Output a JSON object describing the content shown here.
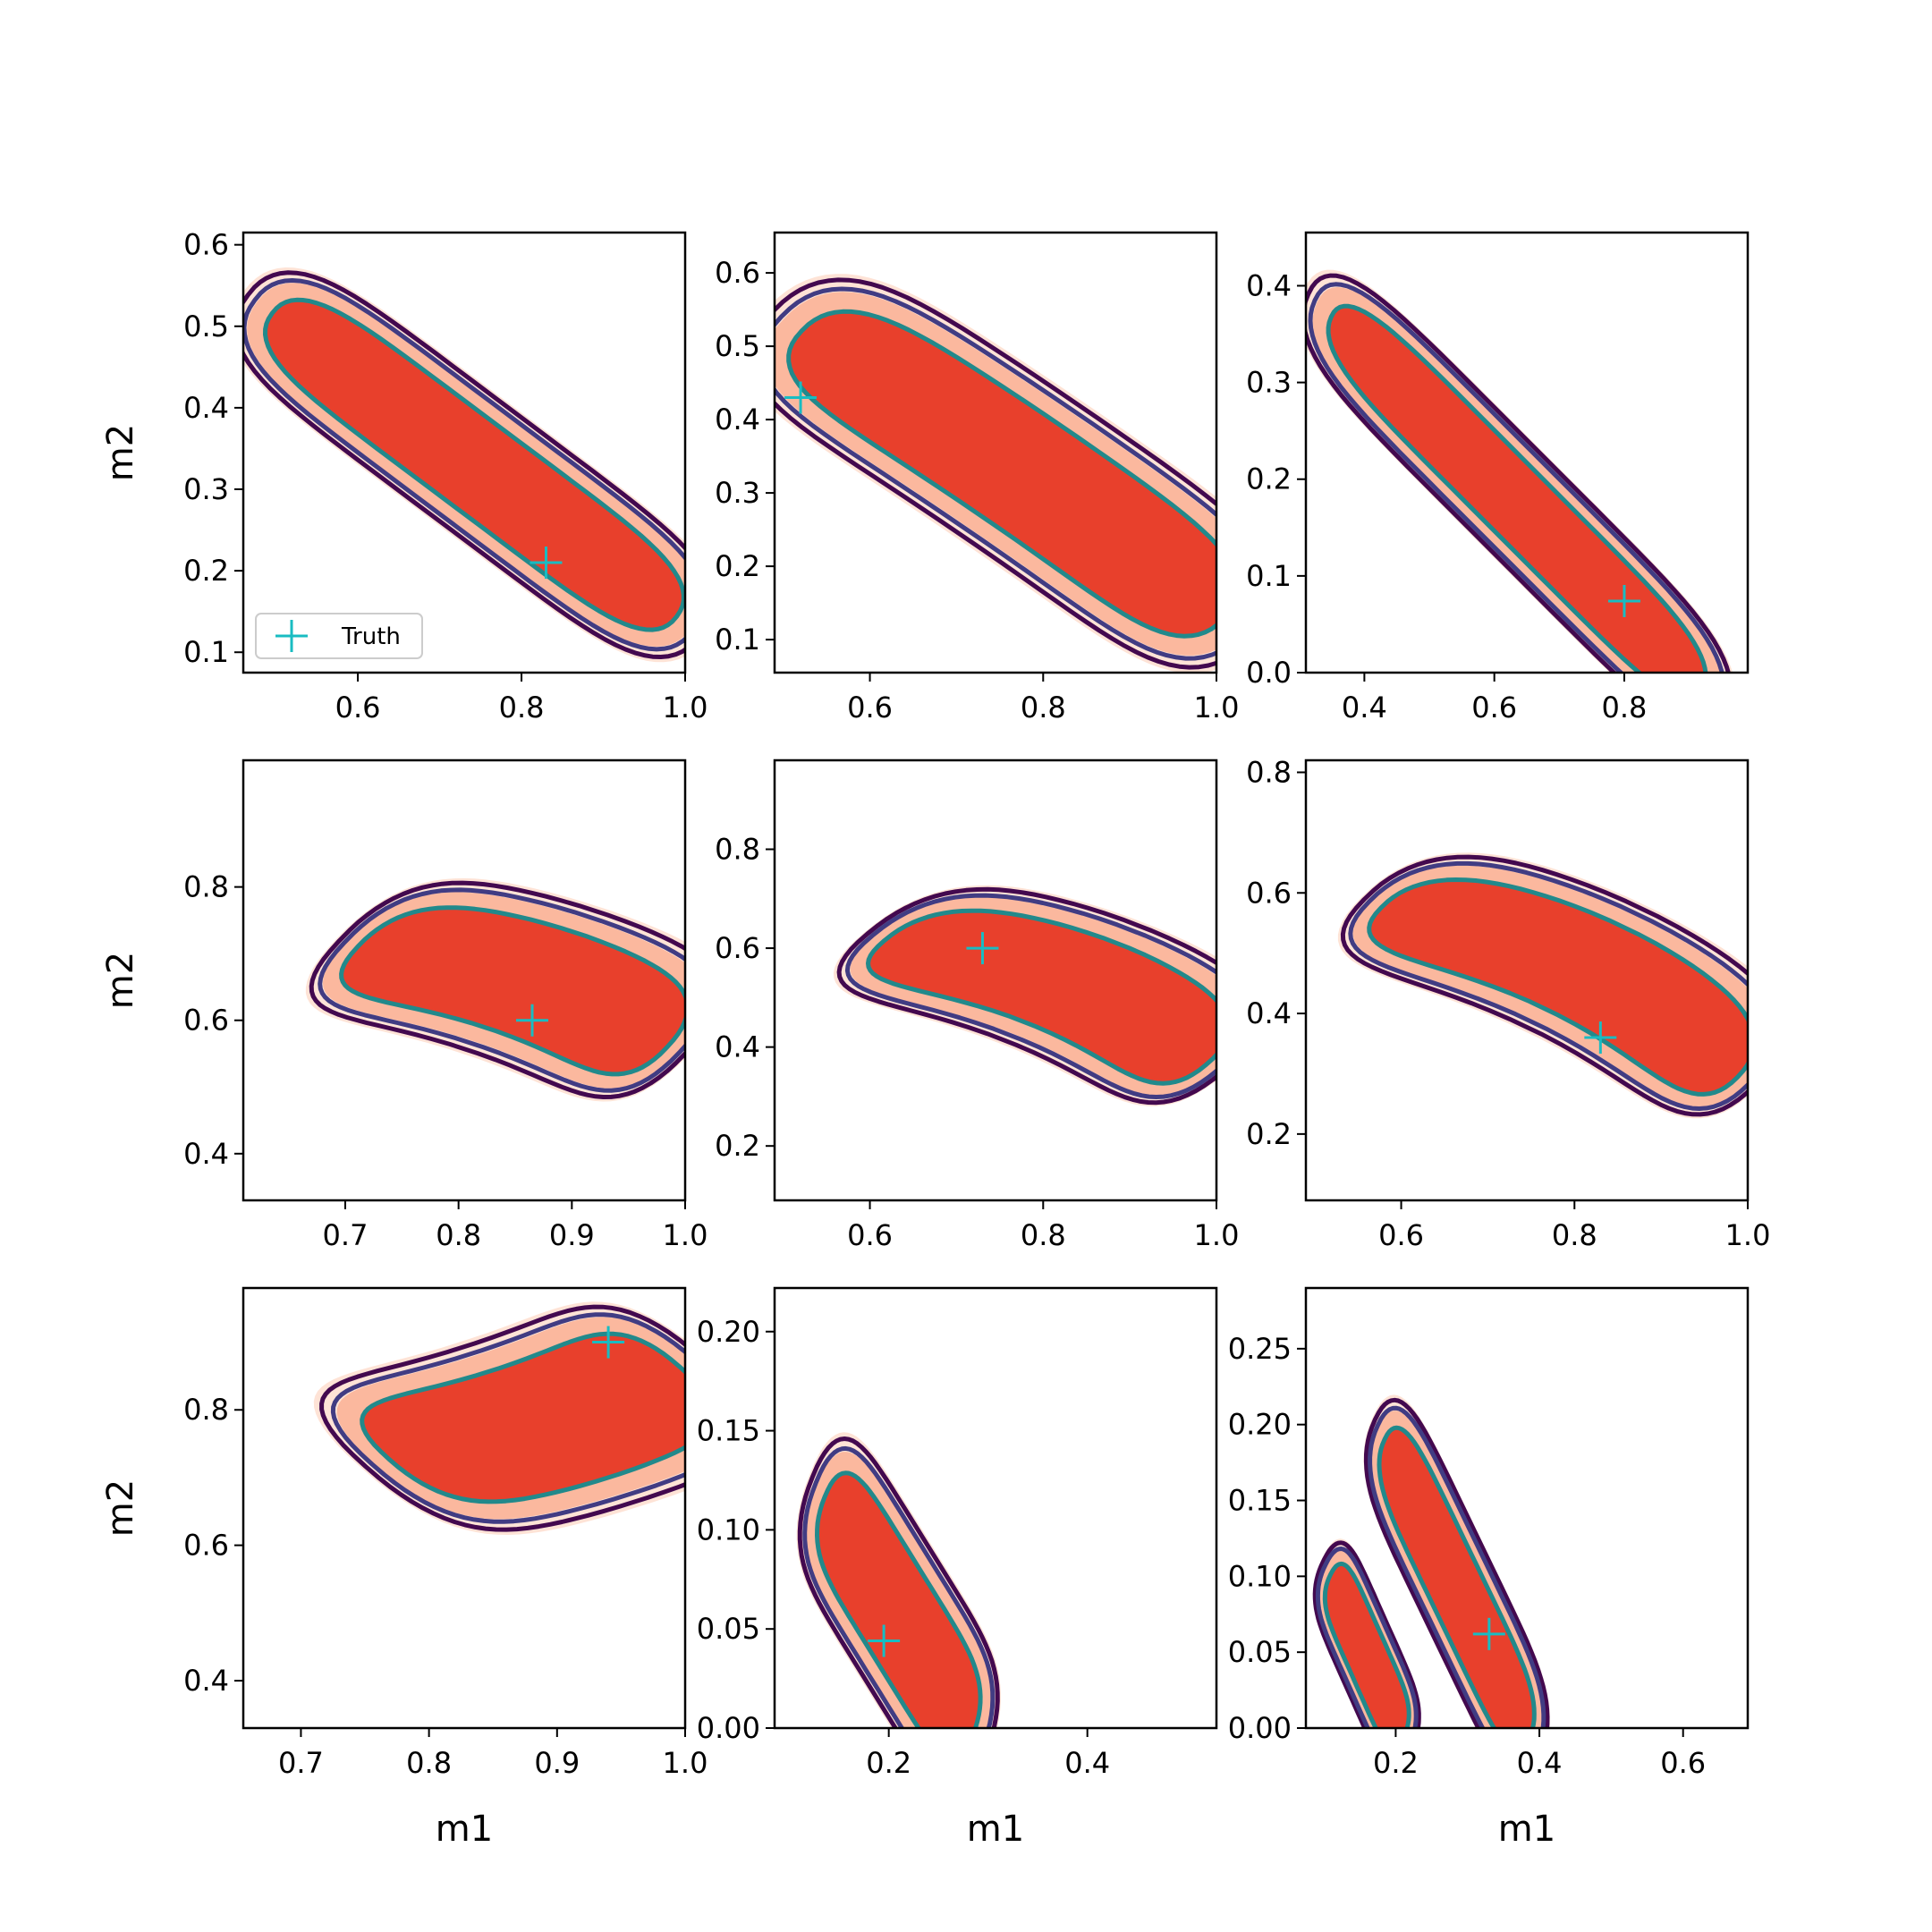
{
  "figure": {
    "legend_label": "Truth"
  },
  "colors": {
    "fill_level_1": "#fee3d6",
    "fill_level_2": "#fbb89e",
    "fill_level_3": "#e8402c",
    "fill_level_4": "#c4161c",
    "contour_outer": "#43094f",
    "contour_mid": "#413c83",
    "contour_inner": "#22898b",
    "truth_marker": "#19bcc2"
  },
  "chart_data": [
    {
      "type": "contour",
      "xlabel": "",
      "ylabel": "m2",
      "xlim": [
        0.46,
        1.0
      ],
      "ylim": [
        0.075,
        0.615
      ],
      "xticks": [
        {
          "v": 0.6,
          "label": "0.6"
        },
        {
          "v": 0.8,
          "label": "0.8"
        },
        {
          "v": 1.0,
          "label": "1.0"
        }
      ],
      "yticks": [
        {
          "v": 0.1,
          "label": "0.1"
        },
        {
          "v": 0.2,
          "label": "0.2"
        },
        {
          "v": 0.3,
          "label": "0.3"
        },
        {
          "v": 0.4,
          "label": "0.4"
        },
        {
          "v": 0.5,
          "label": "0.5"
        },
        {
          "v": 0.6,
          "label": "0.6"
        }
      ],
      "truth": [
        0.83,
        0.21
      ],
      "legend": "lower-left",
      "ridge": {
        "start": [
          0.53,
          0.49
        ],
        "end": [
          0.955,
          0.17
        ],
        "mid_offset": 0.0,
        "width": 0.058,
        "spread": [
          0.14,
          0.052
        ]
      }
    },
    {
      "type": "contour",
      "xlabel": "",
      "ylabel": "",
      "xlim": [
        0.49,
        1.0
      ],
      "ylim": [
        0.055,
        0.655
      ],
      "xticks": [
        {
          "v": 0.6,
          "label": "0.6"
        },
        {
          "v": 0.8,
          "label": "0.8"
        },
        {
          "v": 1.0,
          "label": "1.0"
        }
      ],
      "yticks": [
        {
          "v": 0.1,
          "label": "0.1"
        },
        {
          "v": 0.2,
          "label": "0.2"
        },
        {
          "v": 0.3,
          "label": "0.3"
        },
        {
          "v": 0.4,
          "label": "0.4"
        },
        {
          "v": 0.5,
          "label": "0.5"
        },
        {
          "v": 0.6,
          "label": "0.6"
        }
      ],
      "truth": [
        0.52,
        0.43
      ],
      "ridge": {
        "start": [
          0.56,
          0.49
        ],
        "end": [
          0.97,
          0.16
        ],
        "mid_offset": 0.01,
        "width": 0.08,
        "spread": [
          0.16,
          0.045
        ]
      }
    },
    {
      "type": "contour",
      "xlabel": "",
      "ylabel": "",
      "xlim": [
        0.31,
        0.99
      ],
      "ylim": [
        0.0,
        0.455
      ],
      "xticks": [
        {
          "v": 0.4,
          "label": "0.4"
        },
        {
          "v": 0.6,
          "label": "0.6"
        },
        {
          "v": 0.8,
          "label": "0.8"
        }
      ],
      "yticks": [
        {
          "v": 0.0,
          "label": "0.0"
        },
        {
          "v": 0.1,
          "label": "0.1"
        },
        {
          "v": 0.2,
          "label": "0.2"
        },
        {
          "v": 0.3,
          "label": "0.3"
        },
        {
          "v": 0.4,
          "label": "0.4"
        }
      ],
      "truth": [
        0.8,
        0.074
      ],
      "ridge": {
        "start": [
          0.39,
          0.34
        ],
        "end": [
          0.88,
          0.01
        ],
        "mid_offset": 0.0,
        "width": 0.045,
        "spread": [
          0.16,
          0.055
        ]
      }
    },
    {
      "type": "contour",
      "xlabel": "",
      "ylabel": "m2",
      "xlim": [
        0.61,
        1.0
      ],
      "ylim": [
        0.33,
        0.99
      ],
      "xticks": [
        {
          "v": 0.7,
          "label": "0.7"
        },
        {
          "v": 0.8,
          "label": "0.8"
        },
        {
          "v": 0.9,
          "label": "0.9"
        },
        {
          "v": 1.0,
          "label": "1.0"
        }
      ],
      "yticks": [
        {
          "v": 0.4,
          "label": "0.4"
        },
        {
          "v": 0.6,
          "label": "0.6"
        },
        {
          "v": 0.8,
          "label": "0.8"
        }
      ],
      "truth": [
        0.865,
        0.6
      ],
      "ridge": {
        "start": [
          0.73,
          0.7
        ],
        "end": [
          0.965,
          0.57
        ],
        "mid_offset": 0.03,
        "width": 0.085,
        "spread": [
          0.07,
          0.075
        ]
      }
    },
    {
      "type": "contour",
      "xlabel": "",
      "ylabel": "",
      "xlim": [
        0.49,
        1.0
      ],
      "ylim": [
        0.09,
        0.98
      ],
      "xticks": [
        {
          "v": 0.6,
          "label": "0.6"
        },
        {
          "v": 0.8,
          "label": "0.8"
        },
        {
          "v": 1.0,
          "label": "1.0"
        }
      ],
      "yticks": [
        {
          "v": 0.2,
          "label": "0.2"
        },
        {
          "v": 0.4,
          "label": "0.4"
        },
        {
          "v": 0.6,
          "label": "0.6"
        },
        {
          "v": 0.8,
          "label": "0.8"
        }
      ],
      "truth": [
        0.73,
        0.6
      ],
      "ridge": {
        "start": [
          0.64,
          0.6
        ],
        "end": [
          0.965,
          0.38
        ],
        "mid_offset": 0.05,
        "width": 0.1,
        "spread": [
          0.09,
          0.09
        ]
      }
    },
    {
      "type": "contour",
      "xlabel": "",
      "ylabel": "",
      "xlim": [
        0.49,
        1.0
      ],
      "ylim": [
        0.09,
        0.82
      ],
      "xticks": [
        {
          "v": 0.6,
          "label": "0.6"
        },
        {
          "v": 0.8,
          "label": "0.8"
        },
        {
          "v": 1.0,
          "label": "1.0"
        }
      ],
      "yticks": [
        {
          "v": 0.2,
          "label": "0.2"
        },
        {
          "v": 0.4,
          "label": "0.4"
        },
        {
          "v": 0.6,
          "label": "0.6"
        },
        {
          "v": 0.8,
          "label": "0.8"
        }
      ],
      "truth": [
        0.83,
        0.36
      ],
      "ridge": {
        "start": [
          0.6,
          0.56
        ],
        "end": [
          0.965,
          0.31
        ],
        "mid_offset": 0.05,
        "width": 0.085,
        "spread": [
          0.09,
          0.085
        ]
      }
    },
    {
      "type": "contour",
      "xlabel": "m1",
      "ylabel": "m2",
      "xlim": [
        0.655,
        1.0
      ],
      "ylim": [
        0.33,
        0.98
      ],
      "xticks": [
        {
          "v": 0.7,
          "label": "0.7"
        },
        {
          "v": 0.8,
          "label": "0.8"
        },
        {
          "v": 0.9,
          "label": "0.9"
        },
        {
          "v": 1.0,
          "label": "1.0"
        }
      ],
      "yticks": [
        {
          "v": 0.4,
          "label": "0.4"
        },
        {
          "v": 0.6,
          "label": "0.6"
        },
        {
          "v": 0.8,
          "label": "0.8"
        }
      ],
      "truth": [
        0.94,
        0.9
      ],
      "ridge": {
        "start": [
          0.79,
          0.74
        ],
        "end": [
          0.975,
          0.85
        ],
        "mid_offset": -0.02,
        "width": 0.095,
        "spread": [
          0.08,
          0.09
        ]
      }
    },
    {
      "type": "contour",
      "xlabel": "m1",
      "ylabel": "",
      "xlim": [
        0.085,
        0.53
      ],
      "ylim": [
        0.0,
        0.222
      ],
      "xticks": [
        {
          "v": 0.2,
          "label": "0.2"
        },
        {
          "v": 0.4,
          "label": "0.4"
        }
      ],
      "yticks": [
        {
          "v": 0.0,
          "label": "0.00"
        },
        {
          "v": 0.05,
          "label": "0.05"
        },
        {
          "v": 0.1,
          "label": "0.10"
        },
        {
          "v": 0.15,
          "label": "0.15"
        },
        {
          "v": 0.2,
          "label": "0.20"
        }
      ],
      "truth": [
        0.195,
        0.044
      ],
      "ridge": {
        "start": [
          0.15,
          0.105
        ],
        "end": [
          0.27,
          0.008
        ],
        "mid_offset": 0.0,
        "width": 0.033,
        "spread": [
          0.06,
          0.022
        ]
      }
    },
    {
      "type": "contour",
      "xlabel": "m1",
      "ylabel": "",
      "xlim": [
        0.075,
        0.69
      ],
      "ylim": [
        0.0,
        0.29
      ],
      "xticks": [
        {
          "v": 0.2,
          "label": "0.2"
        },
        {
          "v": 0.4,
          "label": "0.4"
        },
        {
          "v": 0.6,
          "label": "0.6"
        }
      ],
      "yticks": [
        {
          "v": 0.0,
          "label": "0.00"
        },
        {
          "v": 0.05,
          "label": "0.05"
        },
        {
          "v": 0.1,
          "label": "0.10"
        },
        {
          "v": 0.15,
          "label": "0.15"
        },
        {
          "v": 0.2,
          "label": "0.20"
        },
        {
          "v": 0.25,
          "label": "0.25"
        }
      ],
      "truth": [
        0.33,
        0.062
      ],
      "ridge": {
        "start": [
          0.2,
          0.175
        ],
        "end": [
          0.37,
          0.008
        ],
        "mid_offset": 0.0,
        "width": 0.032,
        "spread": [
          0.07,
          0.025
        ]
      },
      "ridge2": {
        "start": [
          0.12,
          0.09
        ],
        "end": [
          0.2,
          0.005
        ],
        "mid_offset": 0.0,
        "width": 0.025,
        "spread": [
          0.05,
          0.02
        ]
      }
    }
  ]
}
